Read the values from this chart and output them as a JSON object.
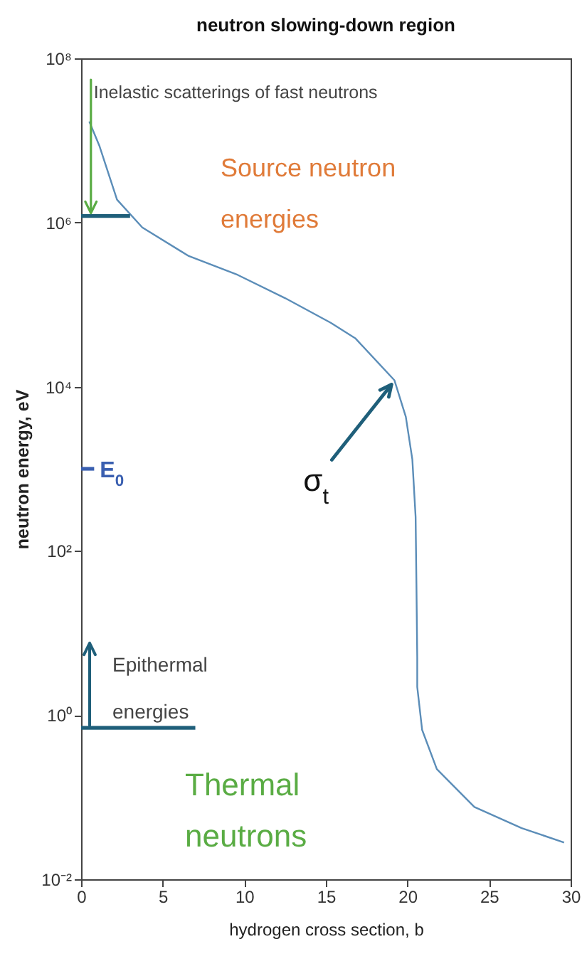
{
  "chart_data": {
    "type": "line",
    "title": "neutron slowing-down region",
    "xlabel": "hydrogen cross section, b",
    "ylabel": "neutron energy, eV",
    "log": "y",
    "grid": false,
    "xlim": [
      0,
      30
    ],
    "xticks": [
      0,
      5,
      10,
      15,
      20,
      25,
      30
    ],
    "ylim": [
      0.01,
      100000000
    ],
    "yticks": [
      {
        "value": 0.01,
        "label": "10⁻²"
      },
      {
        "value": 1,
        "label": "10⁰"
      },
      {
        "value": 100,
        "label": "10²"
      },
      {
        "value": 10000,
        "label": "10⁴"
      },
      {
        "value": 1000000,
        "label": "10⁶"
      },
      {
        "value": 100000000,
        "label": "10⁸"
      }
    ],
    "series": [
      {
        "color": "#5b8db8",
        "x": [
          0.5,
          1.13,
          2.2,
          3.75,
          6.6,
          9.6,
          12.5,
          15.3,
          16.8,
          19.2,
          19.9,
          20.3,
          20.5,
          20.55,
          20.6,
          20.6,
          20.9,
          21.8,
          24.1,
          27,
          29.6
        ],
        "values": [
          17000000,
          8500000,
          1900000,
          870000,
          390000,
          230000,
          120000,
          60000,
          39000,
          12000,
          4300,
          1300,
          260,
          40,
          5,
          2.2,
          0.66,
          0.22,
          0.076,
          0.042,
          0.028
        ]
      },
      {
        "color": "#1f5f7a",
        "x": [
          0,
          3
        ],
        "values": [
          1200000,
          1200000
        ]
      },
      {
        "color": "#1f5f7a",
        "x": [
          0,
          7
        ],
        "values": [
          0.7,
          0.7
        ]
      },
      {
        "color": "#3a5fb0",
        "x": [
          0,
          0.8
        ],
        "values": [
          1000,
          1000
        ]
      }
    ],
    "annotations": [
      {
        "text": "Inelastic scatterings of fast neutrons",
        "x": 0.6,
        "y": 1200000
      },
      "Source neutron energies",
      {
        "text": "E$_{0}$",
        "x": 0.8,
        "y": 1000
      },
      {
        "text": "σ$_{t}$",
        "x": 19.2,
        "y": 12000
      },
      "Epithermal energies",
      "Thermal neutrons"
    ]
  }
}
